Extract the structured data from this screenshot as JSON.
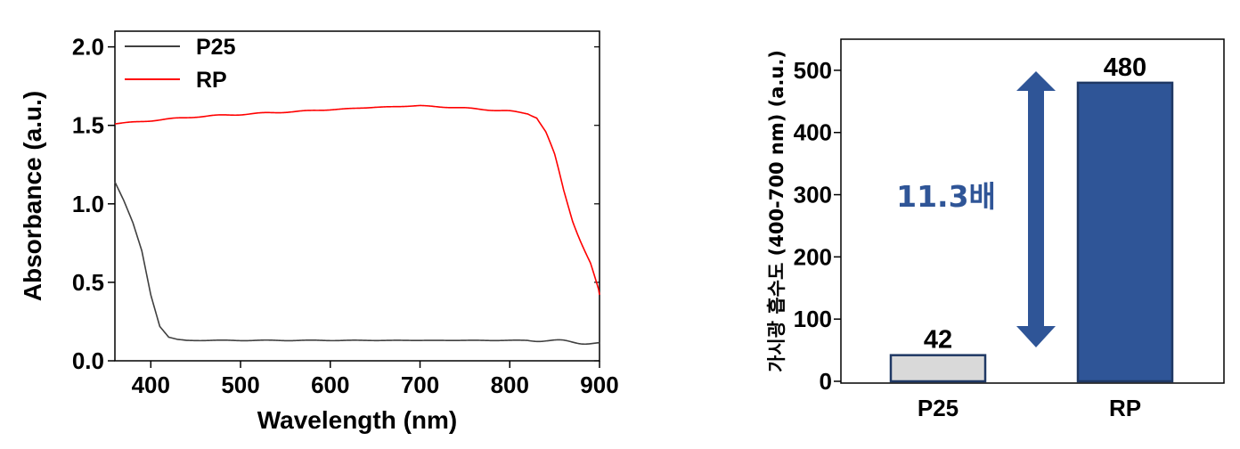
{
  "colors": {
    "p25": "#404040",
    "rp": "#ff0000",
    "bar_p25": "#d9d9d9",
    "bar_rp": "#2f5597",
    "arrow": "#2f5597"
  },
  "chart_data": [
    {
      "type": "line",
      "xlabel": "Wavelength (nm)",
      "ylabel": "Absorbance (a.u.)",
      "xlim": [
        360,
        900
      ],
      "ylim": [
        0,
        2.1
      ],
      "xticks": [
        "400",
        "500",
        "600",
        "700",
        "800",
        "900"
      ],
      "yticks": [
        "0.0",
        "0.5",
        "1.0",
        "1.5",
        "2.0"
      ],
      "legend_position": "top-left",
      "series": [
        {
          "name": "P25",
          "color": "#404040",
          "x": [
            360,
            370,
            380,
            390,
            400,
            410,
            420,
            430,
            440,
            500,
            600,
            700,
            800,
            840,
            860,
            880,
            900
          ],
          "y": [
            1.14,
            1.02,
            0.88,
            0.7,
            0.42,
            0.22,
            0.15,
            0.135,
            0.13,
            0.13,
            0.13,
            0.13,
            0.13,
            0.13,
            0.125,
            0.115,
            0.11
          ]
        },
        {
          "name": "RP",
          "color": "#ff0000",
          "x": [
            360,
            400,
            450,
            500,
            550,
            600,
            650,
            700,
            750,
            800,
            820,
            830,
            840,
            850,
            860,
            870,
            880,
            890,
            900
          ],
          "y": [
            1.51,
            1.53,
            1.555,
            1.57,
            1.585,
            1.6,
            1.615,
            1.625,
            1.61,
            1.59,
            1.575,
            1.55,
            1.46,
            1.3,
            1.08,
            0.9,
            0.76,
            0.62,
            0.42
          ]
        }
      ]
    },
    {
      "type": "bar",
      "categories": [
        "P25",
        "RP"
      ],
      "values": [
        42,
        480
      ],
      "value_labels": [
        "42",
        "480"
      ],
      "ylabel": "가시광 흡수도 (400-700 nm) (a.u.)",
      "ylim": [
        0,
        550
      ],
      "yticks": [
        "0",
        "100",
        "200",
        "300",
        "400",
        "500"
      ],
      "annotation": "11.3배"
    }
  ]
}
